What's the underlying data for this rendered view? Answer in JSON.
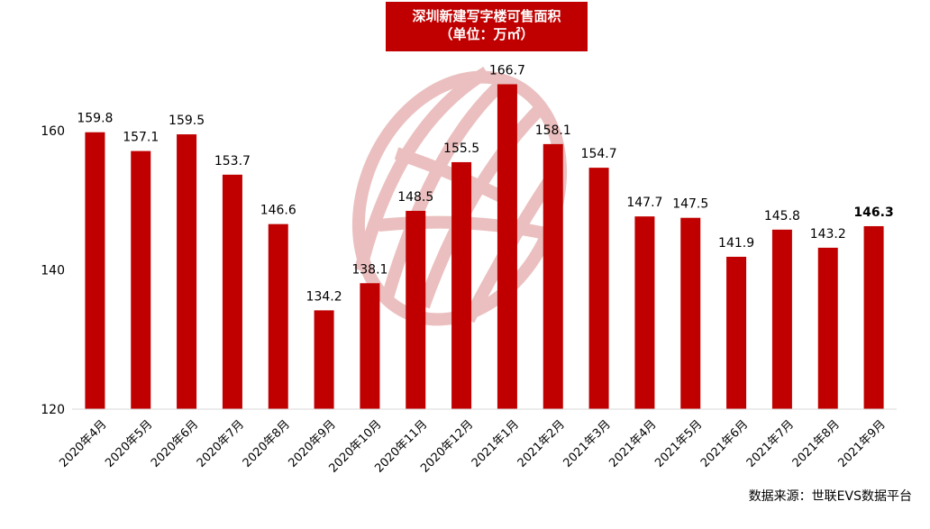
{
  "title": "深圳新建写字楼可售面积",
  "subtitle": "（单位：万㎡）",
  "source": "数据来源：世联EVS数据平台",
  "colors": {
    "bar": "#c00000",
    "title_bg": "#c00000",
    "watermark": "#e8b4b4"
  },
  "chart_data": {
    "type": "bar",
    "categories": [
      "2020年4月",
      "2020年5月",
      "2020年6月",
      "2020年7月",
      "2020年8月",
      "2020年9月",
      "2020年10月",
      "2020年11月",
      "2020年12月",
      "2021年1月",
      "2021年2月",
      "2021年3月",
      "2021年4月",
      "2021年5月",
      "2021年6月",
      "2021年7月",
      "2021年8月",
      "2021年9月"
    ],
    "values": [
      159.8,
      157.1,
      159.5,
      153.7,
      146.6,
      134.2,
      138.1,
      148.5,
      155.5,
      166.7,
      158.1,
      154.7,
      147.7,
      147.5,
      141.9,
      145.8,
      143.2,
      146.3
    ],
    "value_labels": [
      "159.8",
      "157.1",
      "159.5",
      "153.7",
      "146.6",
      "134.2",
      "138.1",
      "148.5",
      "155.5",
      "166.7",
      "158.1",
      "154.7",
      "147.7",
      "147.5",
      "141.9",
      "145.8",
      "143.2",
      "146.3"
    ],
    "yticks": [
      "120",
      "140",
      "160"
    ],
    "ylim": [
      120,
      170
    ],
    "highlight_last": true,
    "grid": false
  }
}
